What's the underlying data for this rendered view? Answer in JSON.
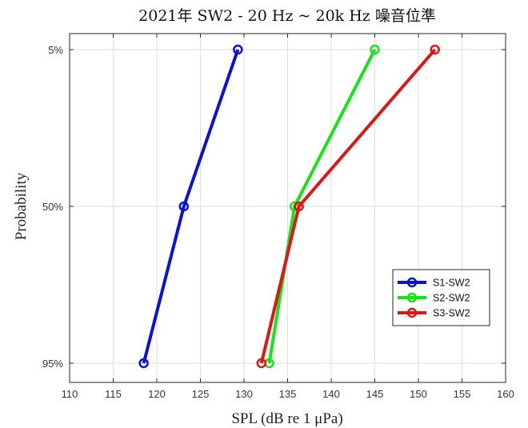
{
  "chart_data": {
    "type": "line",
    "title": "2021年  SW2 - 20 Hz ~ 20k Hz 噪音位準",
    "xlabel": "SPL (dB re 1 μPa)",
    "ylabel": "Probability",
    "xlim": [
      110,
      160
    ],
    "xticks": [
      110,
      115,
      120,
      125,
      130,
      135,
      140,
      145,
      150,
      155,
      160
    ],
    "yticks": [
      "5%",
      "50%",
      "95%"
    ],
    "grid": true,
    "legend_position": "lower-right",
    "series": [
      {
        "name": "S1-SW2",
        "color": "#0a12d8",
        "points": [
          [
            "5%",
            129.3
          ],
          [
            "50%",
            123.1
          ],
          [
            "95%",
            118.5
          ]
        ]
      },
      {
        "name": "S2-SW2",
        "color": "#16e416",
        "points": [
          [
            "5%",
            145.0
          ],
          [
            "50%",
            135.8
          ],
          [
            "95%",
            132.9
          ]
        ]
      },
      {
        "name": "S3-SW2",
        "color": "#e01515",
        "points": [
          [
            "5%",
            151.9
          ],
          [
            "50%",
            136.3
          ],
          [
            "95%",
            132.0
          ]
        ]
      }
    ]
  }
}
